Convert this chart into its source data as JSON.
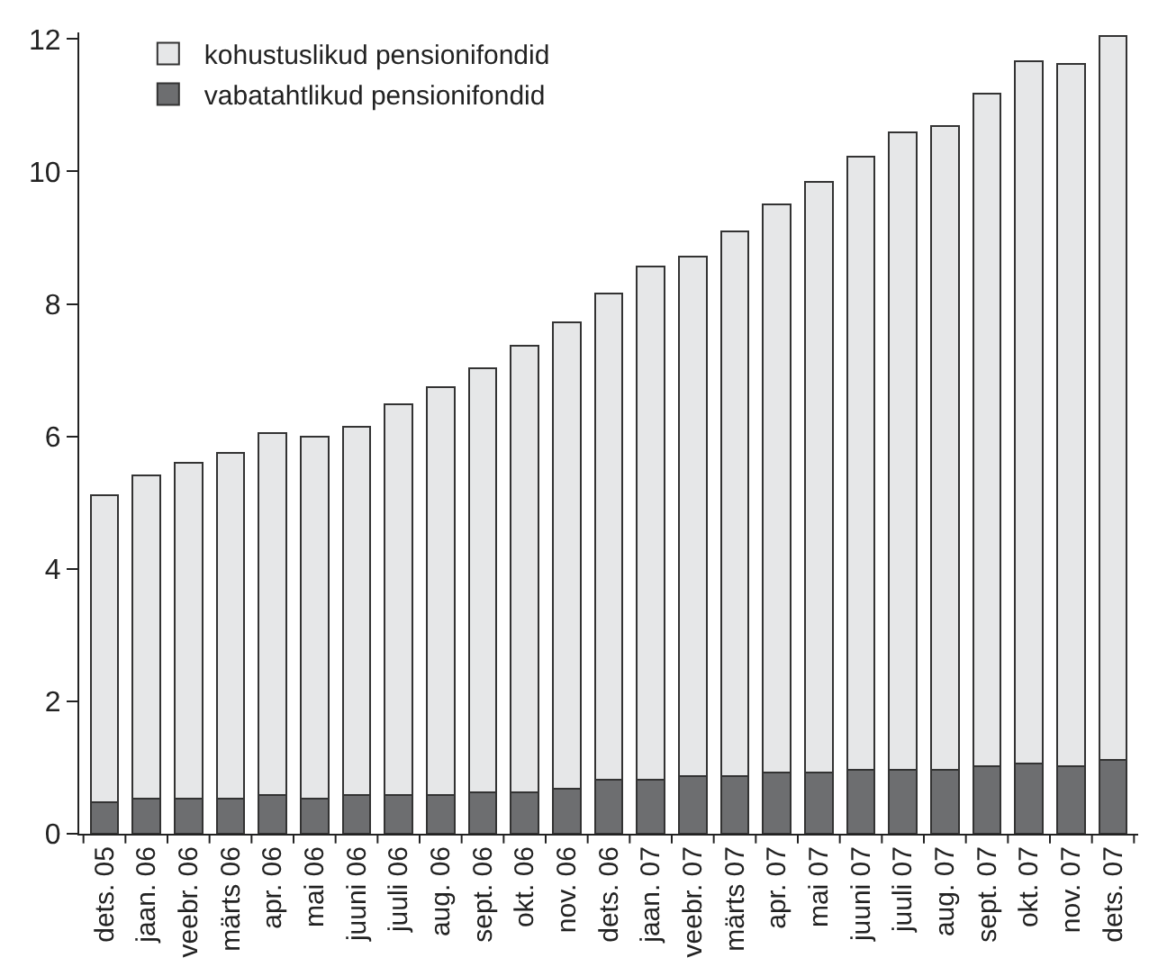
{
  "chart_data": {
    "type": "bar",
    "stacked": true,
    "categories": [
      "dets. 05",
      "jaan. 06",
      "veebr. 06",
      "märts 06",
      "apr. 06",
      "mai 06",
      "juuni 06",
      "juuli 06",
      "aug. 06",
      "sept. 06",
      "okt. 06",
      "nov. 06",
      "dets. 06",
      "jaan. 07",
      "veebr. 07",
      "märts 07",
      "apr. 07",
      "mai 07",
      "juuni 07",
      "juuli 07",
      "aug. 07",
      "sept. 07",
      "okt. 07",
      "nov. 07",
      "dets. 07"
    ],
    "series": [
      {
        "name": "vabatahtlikud pensionifondid",
        "color": "#6d6e70",
        "values": [
          0.48,
          0.53,
          0.53,
          0.53,
          0.58,
          0.53,
          0.58,
          0.58,
          0.58,
          0.62,
          0.62,
          0.68,
          0.82,
          0.82,
          0.87,
          0.87,
          0.92,
          0.92,
          0.96,
          0.96,
          0.96,
          1.02,
          1.06,
          1.02,
          1.11
        ]
      },
      {
        "name": "kohustuslikud pensionifondid",
        "color": "#e6e7e8",
        "values": [
          4.63,
          4.88,
          5.07,
          5.22,
          5.47,
          5.46,
          5.56,
          5.91,
          6.16,
          6.41,
          6.75,
          7.04,
          7.34,
          7.74,
          7.84,
          8.23,
          8.58,
          8.93,
          9.27,
          9.63,
          9.72,
          10.15,
          10.61,
          10.6,
          10.94
        ]
      }
    ],
    "ylim": [
      0,
      12.1
    ],
    "yticks": [
      0,
      2,
      4,
      6,
      8,
      10,
      12
    ],
    "grid": false,
    "legend": "top left"
  }
}
